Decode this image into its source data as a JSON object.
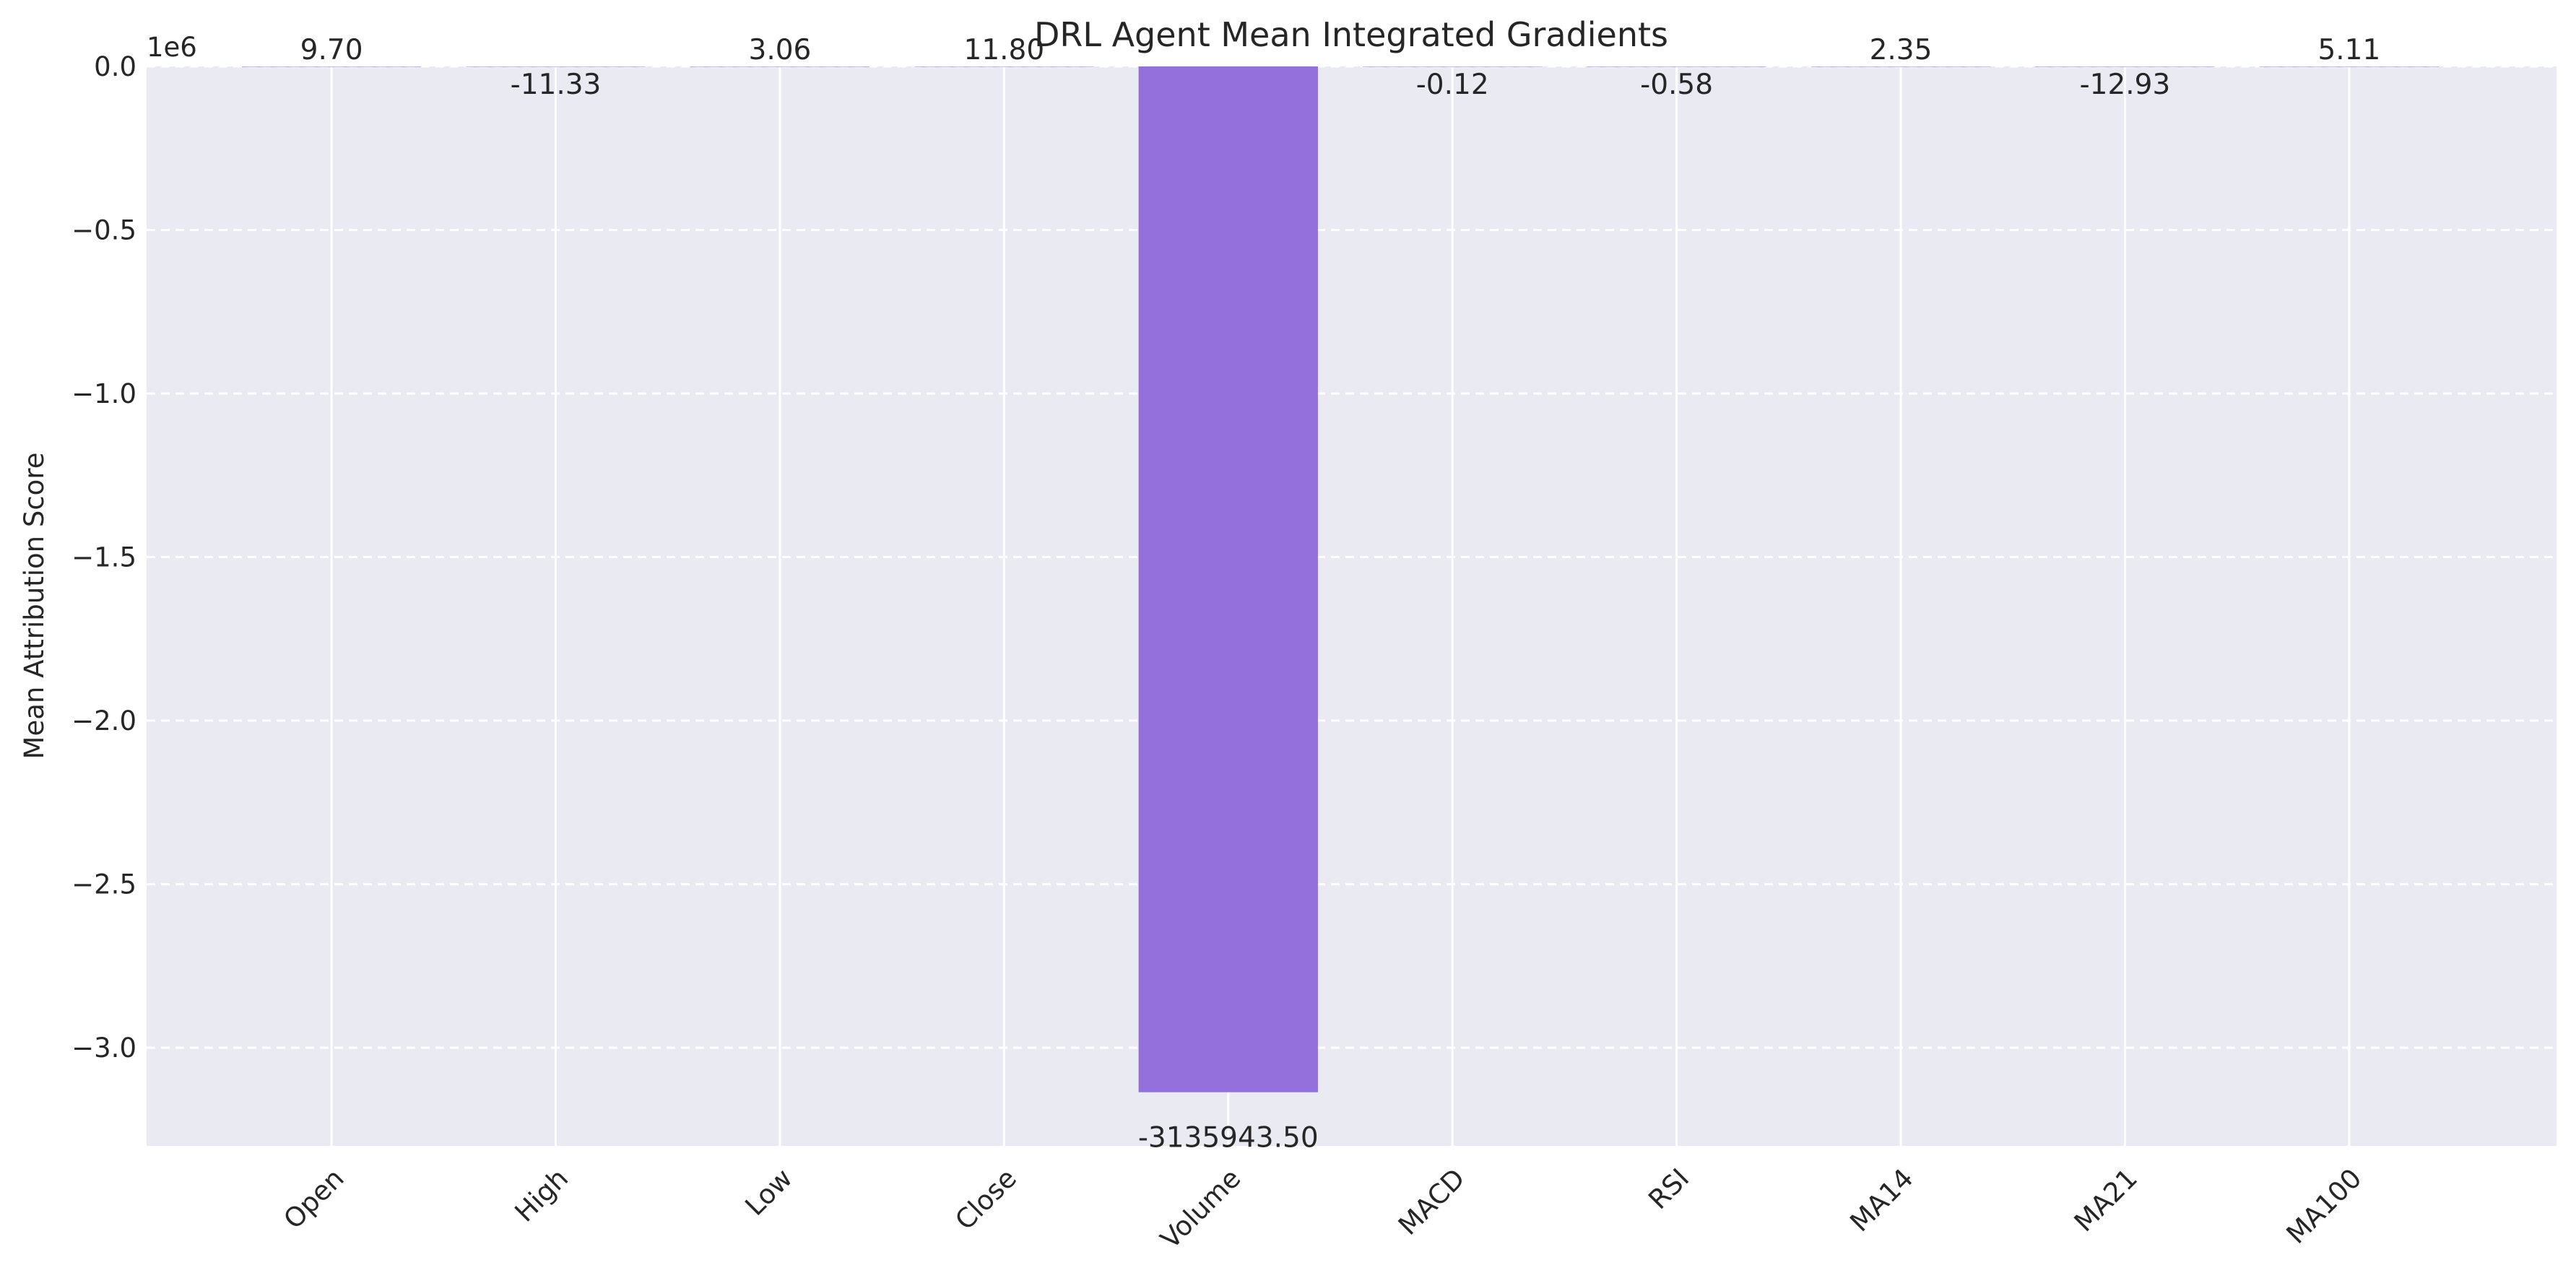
{
  "chart_data": {
    "type": "bar",
    "title": "DRL Agent Mean Integrated Gradients",
    "xlabel": "",
    "ylabel": "Mean Attribution Score",
    "y_offset_label": "1e6",
    "y_scale": 1000000,
    "ylim": [
      -3.3,
      0.0
    ],
    "yticks": [
      0.0,
      -0.5,
      -1.0,
      -1.5,
      -2.0,
      -2.5,
      -3.0
    ],
    "ytick_labels": [
      "0.0",
      "−0.5",
      "−1.0",
      "−1.5",
      "−2.0",
      "−2.5",
      "−3.0"
    ],
    "grid": true,
    "categories": [
      "Open",
      "High",
      "Low",
      "Close",
      "Volume",
      "MACD",
      "RSI",
      "MA14",
      "MA21",
      "MA100"
    ],
    "values": [
      9.7,
      -11.33,
      3.06,
      11.8,
      -3135943.5,
      -0.12,
      -0.58,
      2.35,
      -12.93,
      5.11
    ],
    "value_labels": [
      "9.70",
      "-11.33",
      "3.06",
      "11.80",
      "-3135943.50",
      "-0.12",
      "-0.58",
      "2.35",
      "-12.93",
      "5.11"
    ],
    "bar_color": "#9370db"
  }
}
